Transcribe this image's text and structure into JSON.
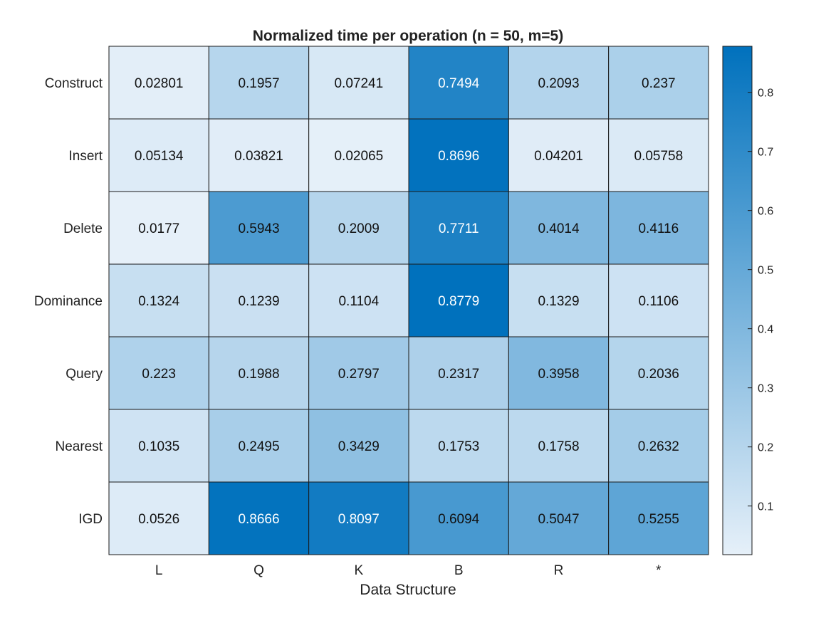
{
  "chart_data": {
    "type": "heatmap",
    "title": "Normalized time per operation (n = 50, m=5)",
    "xlabel": "Data Structure",
    "ylabel": "",
    "columns": [
      "L",
      "Q",
      "K",
      "B",
      "R",
      "*"
    ],
    "rows": [
      "Construct",
      "Insert",
      "Delete",
      "Dominance",
      "Query",
      "Nearest",
      "IGD"
    ],
    "values": [
      [
        0.02801,
        0.1957,
        0.07241,
        0.7494,
        0.2093,
        0.237
      ],
      [
        0.05134,
        0.03821,
        0.02065,
        0.8696,
        0.04201,
        0.05758
      ],
      [
        0.0177,
        0.5943,
        0.2009,
        0.7711,
        0.4014,
        0.4116
      ],
      [
        0.1324,
        0.1239,
        0.1104,
        0.8779,
        0.1329,
        0.1106
      ],
      [
        0.223,
        0.1988,
        0.2797,
        0.2317,
        0.3958,
        0.2036
      ],
      [
        0.1035,
        0.2495,
        0.3429,
        0.1753,
        0.1758,
        0.2632
      ],
      [
        0.0526,
        0.8666,
        0.8097,
        0.6094,
        0.5047,
        0.5255
      ]
    ],
    "cell_labels": [
      [
        "0.02801",
        "0.1957",
        "0.07241",
        "0.7494",
        "0.2093",
        "0.237"
      ],
      [
        "0.05134",
        "0.03821",
        "0.02065",
        "0.8696",
        "0.04201",
        "0.05758"
      ],
      [
        "0.0177",
        "0.5943",
        "0.2009",
        "0.7711",
        "0.4014",
        "0.4116"
      ],
      [
        "0.1324",
        "0.1239",
        "0.1104",
        "0.8779",
        "0.1329",
        "0.1106"
      ],
      [
        "0.223",
        "0.1988",
        "0.2797",
        "0.2317",
        "0.3958",
        "0.2036"
      ],
      [
        "0.1035",
        "0.2495",
        "0.3429",
        "0.1753",
        "0.1758",
        "0.2632"
      ],
      [
        "0.0526",
        "0.8666",
        "0.8097",
        "0.6094",
        "0.5047",
        "0.5255"
      ]
    ],
    "colorbar": {
      "range": [
        0.0177,
        0.8779
      ],
      "ticks": [
        0.1,
        0.2,
        0.3,
        0.4,
        0.5,
        0.6,
        0.7,
        0.8
      ],
      "tick_labels": [
        "0.1",
        "0.2",
        "0.3",
        "0.4",
        "0.5",
        "0.6",
        "0.7",
        "0.8"
      ],
      "color_low": "#e6f0f9",
      "color_high": "#0071bd"
    },
    "grid": false,
    "legend": "colorbar-right"
  }
}
